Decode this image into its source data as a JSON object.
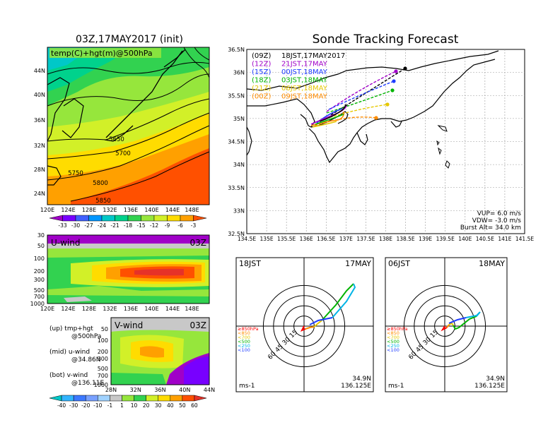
{
  "left_panel": {
    "title": "03Z,17MAY2017 (init)",
    "map_label": "temp(C)+hgt(m)@500hPa",
    "lat_ticks": [
      "44N",
      "40N",
      "36N",
      "32N",
      "28N",
      "24N"
    ],
    "lon_ticks": [
      "120E",
      "124E",
      "128E",
      "132E",
      "136E",
      "140E",
      "144E",
      "148E"
    ],
    "contours": [
      "5650",
      "5700",
      "5750",
      "5800",
      "5850"
    ],
    "colorbar_ticks": [
      "-33",
      "-30",
      "-27",
      "-24",
      "-21",
      "-18",
      "-15",
      "-12",
      "-9",
      "-6",
      "-3"
    ],
    "colorbar_colors": [
      "#a000c8",
      "#7800ff",
      "#4060ff",
      "#0096ff",
      "#00c8c8",
      "#00d28c",
      "#32d250",
      "#96e63c",
      "#d2f028",
      "#ffdc00",
      "#ffa000",
      "#ff5000"
    ]
  },
  "uwind_panel": {
    "label": "U-wind",
    "time": "03Z",
    "p_ticks": [
      "30",
      "50",
      "100",
      "200",
      "300",
      "500",
      "700",
      "1000"
    ],
    "lon_ticks": [
      "120E",
      "124E",
      "128E",
      "132E",
      "136E",
      "140E",
      "144E",
      "148E"
    ]
  },
  "vwind_panel": {
    "label": "V-wind",
    "time": "03Z",
    "p_ticks": [
      "50",
      "100",
      "200",
      "300",
      "500",
      "700",
      "1000"
    ],
    "lat_ticks": [
      "28N",
      "32N",
      "36N",
      "40N",
      "44N"
    ]
  },
  "legend_notes": [
    {
      "line1": "(up) tmp+hgt",
      "line2": "@500hPa"
    },
    {
      "line1": "(mid) u-wind",
      "line2": "@34.86N"
    },
    {
      "line1": "(bot) v-wind",
      "line2": "@136.11E"
    }
  ],
  "wind_colorbar": {
    "ticks": [
      "-40",
      "-30",
      "-20",
      "-10",
      "-1",
      "1",
      "10",
      "20",
      "30",
      "40",
      "50",
      "60"
    ],
    "colors": [
      "#00c8c8",
      "#32b4ff",
      "#3c78ff",
      "#78a0ff",
      "#a0d2ff",
      "#c8c8c8",
      "#96e63c",
      "#32d250",
      "#d2f028",
      "#ffdc00",
      "#ffa000",
      "#ff5000",
      "#e63228"
    ]
  },
  "tracking_panel": {
    "title": "Sonde Tracking Forecast",
    "lat_ticks": [
      "36.5N",
      "36N",
      "35.5N",
      "35N",
      "34.5N",
      "34N",
      "33.5N",
      "33N",
      "32.5N"
    ],
    "lon_ticks": [
      "134.5E",
      "135E",
      "135.5E",
      "136E",
      "136.5E",
      "137E",
      "137.5E",
      "138E",
      "138.5E",
      "139E",
      "139.5E",
      "140E",
      "140.5E",
      "141E",
      "141.5E"
    ],
    "legend": [
      {
        "code": "(09Z)",
        "text": "18JST,17MAY2017",
        "color": "#000000"
      },
      {
        "code": "(12Z)",
        "text": "21JST,17MAY",
        "color": "#a000c8"
      },
      {
        "code": "(15Z)",
        "text": "00JST,18MAY",
        "color": "#1e3cff"
      },
      {
        "code": "(18Z)",
        "text": "03JST,18MAY",
        "color": "#00b400"
      },
      {
        "code": "(21Z)",
        "text": "06JST,18MAY",
        "color": "#e6c800"
      },
      {
        "code": "(00Z)",
        "text": "09JST,18MAY",
        "color": "#ff8c00"
      }
    ],
    "params": [
      "VUP=  6.0  m/s",
      "VDW= -3.0  m/s",
      "Burst Alt=  34.0  km"
    ]
  },
  "hodographs": [
    {
      "time": "18JST",
      "date": "17MAY",
      "pos_lat": "34.9N",
      "pos_lon": "136.125E",
      "unit": "ms-1",
      "rings": [
        "15",
        "30",
        "45",
        "60"
      ]
    },
    {
      "time": "06JST",
      "date": "18MAY",
      "pos_lat": "34.9N",
      "pos_lon": "136.125E",
      "unit": "ms-1",
      "rings": [
        "15",
        "30",
        "45",
        "60"
      ]
    }
  ],
  "hodo_legend": [
    {
      "text": "≥850hPa",
      "color": "#ff0000"
    },
    {
      "text": "<850",
      "color": "#ff8c00"
    },
    {
      "text": "<700",
      "color": "#e6c800"
    },
    {
      "text": "<500",
      "color": "#00b400"
    },
    {
      "text": "<250",
      "color": "#00b4e6"
    },
    {
      "text": "<100",
      "color": "#1e3cff"
    }
  ]
}
